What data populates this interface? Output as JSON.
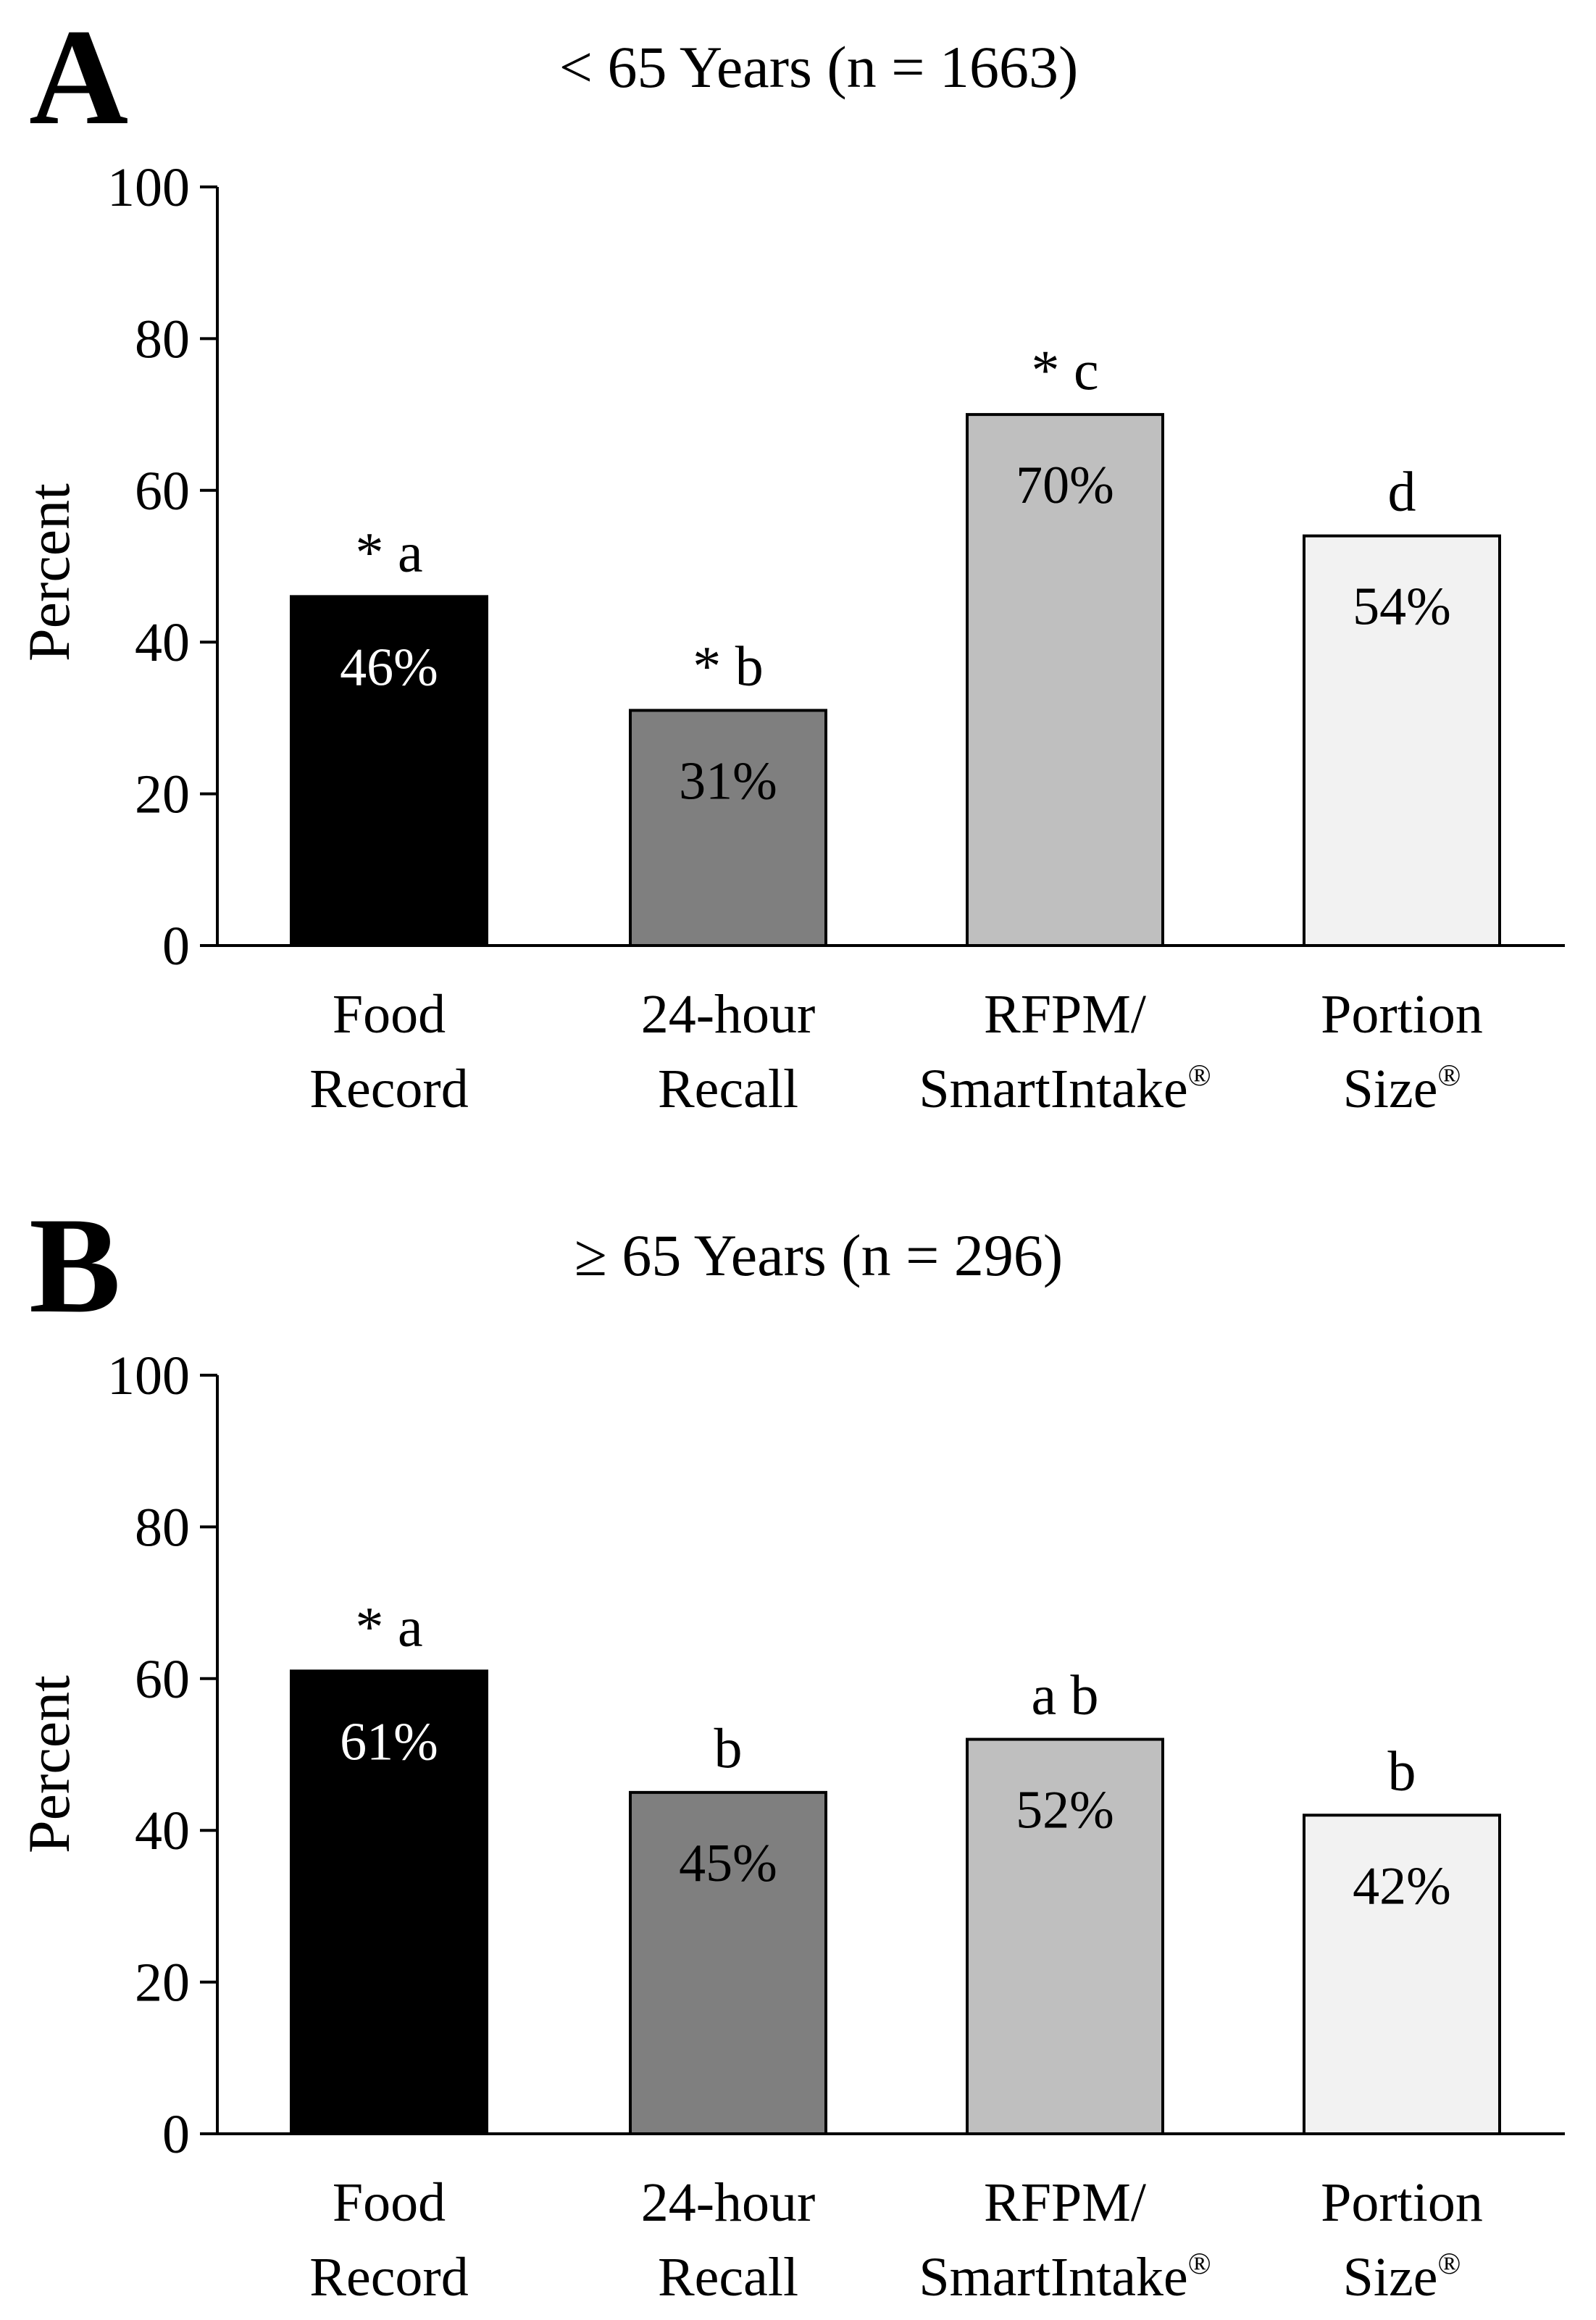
{
  "chart_data": [
    {
      "type": "bar",
      "panel": "A",
      "title": "< 65 Years (n = 1663)",
      "ylabel": "Percent",
      "xlabel": "",
      "ylim": [
        0,
        100
      ],
      "yticks": [
        "0",
        "20",
        "40",
        "60",
        "80",
        "100"
      ],
      "categories": [
        {
          "line1": "Food",
          "line2": "Record",
          "sup": ""
        },
        {
          "line1": "24-hour",
          "line2": "Recall",
          "sup": ""
        },
        {
          "line1": "RFPM/",
          "line2": "SmartIntake",
          "sup": "®"
        },
        {
          "line1": "Portion",
          "line2": "Size",
          "sup": "®"
        }
      ],
      "values": [
        46,
        31,
        70,
        54
      ],
      "value_labels": [
        "46%",
        "31%",
        "70%",
        "54%"
      ],
      "significance": [
        "* a",
        "* b",
        "* c",
        "d"
      ],
      "colors": [
        "#000000",
        "#7f7f7f",
        "#bfbfbf",
        "#f2f2f2"
      ],
      "label_colors": [
        "#ffffff",
        "#000000",
        "#000000",
        "#000000"
      ],
      "grid": false,
      "legend": "none"
    },
    {
      "type": "bar",
      "panel": "B",
      "title": "≥ 65 Years (n = 296)",
      "ylabel": "Percent",
      "xlabel": "",
      "ylim": [
        0,
        100
      ],
      "yticks": [
        "0",
        "20",
        "40",
        "60",
        "80",
        "100"
      ],
      "categories": [
        {
          "line1": "Food",
          "line2": "Record",
          "sup": ""
        },
        {
          "line1": "24-hour",
          "line2": "Recall",
          "sup": ""
        },
        {
          "line1": "RFPM/",
          "line2": "SmartIntake",
          "sup": "®"
        },
        {
          "line1": "Portion",
          "line2": "Size",
          "sup": "®"
        }
      ],
      "values": [
        61,
        45,
        52,
        42
      ],
      "value_labels": [
        "61%",
        "45%",
        "52%",
        "42%"
      ],
      "significance": [
        "* a",
        "b",
        "a b",
        "b"
      ],
      "colors": [
        "#000000",
        "#7f7f7f",
        "#bfbfbf",
        "#f2f2f2"
      ],
      "label_colors": [
        "#ffffff",
        "#000000",
        "#000000",
        "#000000"
      ],
      "grid": false,
      "legend": "none"
    }
  ]
}
